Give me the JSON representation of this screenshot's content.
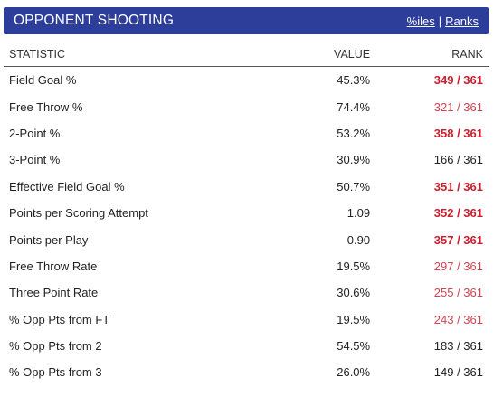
{
  "header": {
    "title": "OPPONENT SHOOTING",
    "link_percentiles": "%iles",
    "separator": "|",
    "link_ranks": "Ranks"
  },
  "columns": {
    "statistic": "STATISTIC",
    "value": "VALUE",
    "rank": "RANK"
  },
  "rows": [
    {
      "stat": "Field Goal %",
      "value": "45.3%",
      "rank": "349 / 361",
      "color": "#cc1f2e",
      "bold": true
    },
    {
      "stat": "Free Throw %",
      "value": "74.4%",
      "rank": "321 / 361",
      "color": "#d2434f",
      "bold": false
    },
    {
      "stat": "2-Point %",
      "value": "53.2%",
      "rank": "358 / 361",
      "color": "#cc1f2e",
      "bold": true
    },
    {
      "stat": "3-Point %",
      "value": "30.9%",
      "rank": "166 / 361",
      "color": "#222222",
      "bold": false
    },
    {
      "stat": "Effective Field Goal %",
      "value": "50.7%",
      "rank": "351 / 361",
      "color": "#cc1f2e",
      "bold": true
    },
    {
      "stat": "Points per Scoring Attempt",
      "value": "1.09",
      "rank": "352 / 361",
      "color": "#cc1f2e",
      "bold": true
    },
    {
      "stat": "Points per Play",
      "value": "0.90",
      "rank": "357 / 361",
      "color": "#cc1f2e",
      "bold": true
    },
    {
      "stat": "Free Throw Rate",
      "value": "19.5%",
      "rank": "297 / 361",
      "color": "#d2434f",
      "bold": false
    },
    {
      "stat": "Three Point Rate",
      "value": "30.6%",
      "rank": "255 / 361",
      "color": "#d2434f",
      "bold": false
    },
    {
      "stat": "% Opp Pts from FT",
      "value": "19.5%",
      "rank": "243 / 361",
      "color": "#d2434f",
      "bold": false
    },
    {
      "stat": "% Opp Pts from 2",
      "value": "54.5%",
      "rank": "183 / 361",
      "color": "#222222",
      "bold": false
    },
    {
      "stat": "% Opp Pts from 3",
      "value": "26.0%",
      "rank": "149 / 361",
      "color": "#222222",
      "bold": false
    }
  ]
}
